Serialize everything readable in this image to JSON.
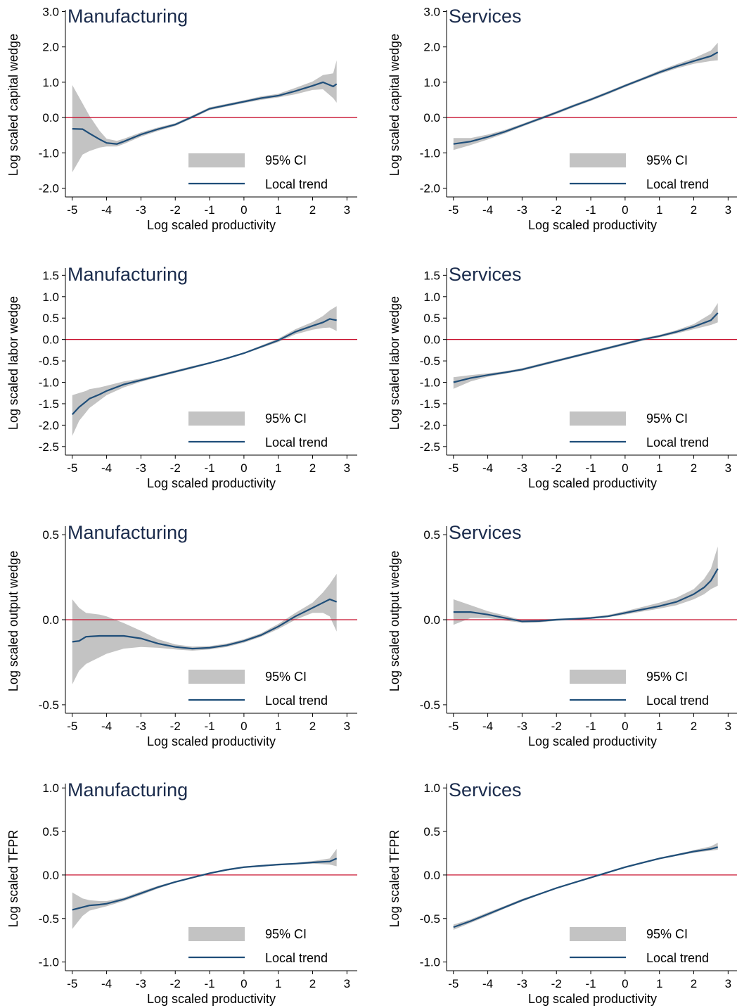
{
  "figure": {
    "xlabel": "Log scaled productivity",
    "legend": {
      "ci_label": "95% CI",
      "trend_label": "Local trend"
    },
    "colors": {
      "ci": "#c3c3c3",
      "trend": "#1f4e79",
      "reference": "#c8102e",
      "title": "#1a2b4c"
    }
  },
  "chart_data": [
    {
      "type": "line",
      "title": "Manufacturing",
      "ylabel": "Log scaled capital wedge",
      "xlabel": "Log scaled productivity",
      "xlim": [
        -5.2,
        3.3
      ],
      "ylim": [
        -2.25,
        3.05
      ],
      "xticks": [
        "-5",
        "-4",
        "-3",
        "-2",
        "-1",
        "0",
        "1",
        "2",
        "3"
      ],
      "yticks": [
        "3.0",
        "2.0",
        "1.0",
        "0.0",
        "-1.0",
        "-2.0"
      ],
      "ytick_values": [
        3,
        2,
        1,
        0,
        -1,
        -2
      ],
      "reference_y": 0,
      "legend_position": "bottom-right",
      "x": [
        -5,
        -4.7,
        -4.5,
        -4.2,
        -4,
        -3.7,
        -3.5,
        -3,
        -2.5,
        -2,
        -1.5,
        -1,
        -0.5,
        0,
        0.5,
        1,
        1.5,
        2,
        2.3,
        2.6,
        2.7
      ],
      "series": [
        {
          "name": "Local trend",
          "values": [
            -0.32,
            -0.33,
            -0.45,
            -0.62,
            -0.72,
            -0.75,
            -0.68,
            -0.48,
            -0.33,
            -0.2,
            0.02,
            0.25,
            0.35,
            0.45,
            0.55,
            0.62,
            0.75,
            0.9,
            1.0,
            0.88,
            0.95
          ]
        },
        {
          "name": "95% CI",
          "lower": [
            -1.55,
            -1.05,
            -0.95,
            -0.85,
            -0.82,
            -0.82,
            -0.75,
            -0.54,
            -0.38,
            -0.24,
            -0.02,
            0.21,
            0.31,
            0.41,
            0.5,
            0.57,
            0.66,
            0.78,
            0.8,
            0.55,
            0.42
          ],
          "upper": [
            0.92,
            0.4,
            0.05,
            -0.38,
            -0.6,
            -0.66,
            -0.6,
            -0.42,
            -0.28,
            -0.16,
            0.06,
            0.29,
            0.39,
            0.49,
            0.6,
            0.67,
            0.84,
            1.02,
            1.2,
            1.25,
            1.62
          ]
        }
      ]
    },
    {
      "type": "line",
      "title": "Services",
      "ylabel": "Log scaled capital wedge",
      "xlabel": "Log scaled productivity",
      "xlim": [
        -5.2,
        3.3
      ],
      "ylim": [
        -2.25,
        3.05
      ],
      "xticks": [
        "-5",
        "-4",
        "-3",
        "-2",
        "-1",
        "0",
        "1",
        "2",
        "3"
      ],
      "yticks": [
        "3.0",
        "2.0",
        "1.0",
        "0.0",
        "-1.0",
        "-2.0"
      ],
      "ytick_values": [
        3,
        2,
        1,
        0,
        -1,
        -2
      ],
      "reference_y": 0,
      "legend_position": "bottom-right",
      "x": [
        -5,
        -4.5,
        -4,
        -3.5,
        -3,
        -2.5,
        -2,
        -1.5,
        -1,
        -0.5,
        0,
        0.5,
        1,
        1.5,
        2,
        2.5,
        2.7
      ],
      "series": [
        {
          "name": "Local trend",
          "values": [
            -0.75,
            -0.68,
            -0.55,
            -0.4,
            -0.22,
            -0.04,
            0.14,
            0.33,
            0.51,
            0.7,
            0.9,
            1.09,
            1.28,
            1.45,
            1.6,
            1.74,
            1.85
          ]
        },
        {
          "name": "95% CI",
          "lower": [
            -0.92,
            -0.78,
            -0.62,
            -0.45,
            -0.26,
            -0.08,
            0.1,
            0.29,
            0.47,
            0.66,
            0.86,
            1.05,
            1.23,
            1.39,
            1.52,
            1.6,
            1.62
          ],
          "upper": [
            -0.58,
            -0.58,
            -0.48,
            -0.35,
            -0.18,
            0,
            0.18,
            0.37,
            0.55,
            0.74,
            0.94,
            1.13,
            1.33,
            1.51,
            1.68,
            1.9,
            2.12
          ]
        }
      ]
    },
    {
      "type": "line",
      "title": "Manufacturing",
      "ylabel": "Log scaled labor wedge",
      "xlabel": "Log scaled productivity",
      "xlim": [
        -5.2,
        3.3
      ],
      "ylim": [
        -2.7,
        1.67
      ],
      "xticks": [
        "-5",
        "-4",
        "-3",
        "-2",
        "-1",
        "0",
        "1",
        "2",
        "3"
      ],
      "yticks": [
        "1.5",
        "1.0",
        "0.5",
        "0.0",
        "-0.5",
        "-1.0",
        "-1.5",
        "-2.0",
        "-2.5"
      ],
      "ytick_values": [
        1.5,
        1,
        0.5,
        0,
        -0.5,
        -1,
        -1.5,
        -2,
        -2.5
      ],
      "reference_y": 0,
      "legend_position": "bottom-right",
      "x": [
        -5,
        -4.8,
        -4.6,
        -4.5,
        -4.2,
        -4,
        -3.5,
        -3,
        -2.5,
        -2,
        -1.5,
        -1,
        -0.5,
        0,
        0.5,
        1,
        1.5,
        2,
        2.3,
        2.5,
        2.7
      ],
      "series": [
        {
          "name": "Local trend",
          "values": [
            -1.75,
            -1.58,
            -1.45,
            -1.38,
            -1.28,
            -1.2,
            -1.05,
            -0.95,
            -0.85,
            -0.75,
            -0.65,
            -0.55,
            -0.44,
            -0.32,
            -0.17,
            -0.02,
            0.18,
            0.32,
            0.4,
            0.48,
            0.45
          ]
        },
        {
          "name": "95% CI",
          "lower": [
            -2.25,
            -1.9,
            -1.7,
            -1.6,
            -1.42,
            -1.3,
            -1.12,
            -0.99,
            -0.88,
            -0.78,
            -0.68,
            -0.57,
            -0.46,
            -0.34,
            -0.2,
            -0.06,
            0.12,
            0.23,
            0.27,
            0.28,
            0.2
          ],
          "upper": [
            -1.3,
            -1.25,
            -1.2,
            -1.16,
            -1.12,
            -1.08,
            -0.98,
            -0.91,
            -0.82,
            -0.72,
            -0.62,
            -0.53,
            -0.42,
            -0.3,
            -0.14,
            0.02,
            0.24,
            0.41,
            0.55,
            0.68,
            0.78
          ]
        }
      ]
    },
    {
      "type": "line",
      "title": "Services",
      "ylabel": "Log scaled labor wedge",
      "xlabel": "Log scaled productivity",
      "xlim": [
        -5.2,
        3.3
      ],
      "ylim": [
        -2.7,
        1.67
      ],
      "xticks": [
        "-5",
        "-4",
        "-3",
        "-2",
        "-1",
        "0",
        "1",
        "2",
        "3"
      ],
      "yticks": [
        "1.5",
        "1.0",
        "0.5",
        "0.0",
        "-0.5",
        "-1.0",
        "-1.5",
        "-2.0",
        "-2.5"
      ],
      "ytick_values": [
        1.5,
        1,
        0.5,
        0,
        -0.5,
        -1,
        -1.5,
        -2,
        -2.5
      ],
      "reference_y": 0,
      "legend_position": "bottom-right",
      "x": [
        -5,
        -4.5,
        -4,
        -3.5,
        -3,
        -2.5,
        -2,
        -1.5,
        -1,
        -0.5,
        0,
        0.5,
        1,
        1.5,
        2,
        2.5,
        2.7
      ],
      "series": [
        {
          "name": "Local trend",
          "values": [
            -1.0,
            -0.9,
            -0.83,
            -0.77,
            -0.7,
            -0.6,
            -0.5,
            -0.4,
            -0.3,
            -0.2,
            -0.1,
            0,
            0.08,
            0.18,
            0.3,
            0.45,
            0.62
          ]
        },
        {
          "name": "95% CI",
          "lower": [
            -1.15,
            -0.98,
            -0.87,
            -0.8,
            -0.73,
            -0.63,
            -0.53,
            -0.43,
            -0.33,
            -0.23,
            -0.13,
            -0.03,
            0.05,
            0.14,
            0.24,
            0.34,
            0.4
          ],
          "upper": [
            -0.88,
            -0.83,
            -0.79,
            -0.74,
            -0.67,
            -0.57,
            -0.47,
            -0.37,
            -0.27,
            -0.17,
            -0.07,
            0.03,
            0.11,
            0.22,
            0.36,
            0.6,
            0.85
          ]
        }
      ]
    },
    {
      "type": "line",
      "title": "Manufacturing",
      "ylabel": "Log scaled output wedge",
      "xlabel": "Log scaled productivity",
      "xlim": [
        -5.2,
        3.3
      ],
      "ylim": [
        -0.55,
        0.55
      ],
      "xticks": [
        "-5",
        "-4",
        "-3",
        "-2",
        "-1",
        "0",
        "1",
        "2",
        "3"
      ],
      "yticks": [
        "0.5",
        "0.0",
        "-0.5"
      ],
      "ytick_values": [
        0.5,
        0,
        -0.5
      ],
      "reference_y": 0,
      "legend_position": "bottom-right",
      "x": [
        -5,
        -4.8,
        -4.6,
        -4.2,
        -4,
        -3.5,
        -3,
        -2.5,
        -2,
        -1.5,
        -1,
        -0.5,
        0,
        0.5,
        1,
        1.5,
        2,
        2.3,
        2.5,
        2.7
      ],
      "series": [
        {
          "name": "Local trend",
          "values": [
            -0.13,
            -0.125,
            -0.1,
            -0.095,
            -0.095,
            -0.095,
            -0.11,
            -0.14,
            -0.16,
            -0.17,
            -0.165,
            -0.15,
            -0.125,
            -0.09,
            -0.04,
            0.02,
            0.07,
            0.1,
            0.12,
            0.105
          ]
        },
        {
          "name": "95% CI",
          "lower": [
            -0.38,
            -0.3,
            -0.26,
            -0.22,
            -0.2,
            -0.17,
            -0.16,
            -0.165,
            -0.175,
            -0.182,
            -0.175,
            -0.16,
            -0.135,
            -0.1,
            -0.055,
            0,
            0.04,
            0.04,
            0.02,
            -0.07
          ],
          "upper": [
            0.12,
            0.07,
            0.04,
            0.03,
            0.02,
            -0.02,
            -0.065,
            -0.115,
            -0.145,
            -0.158,
            -0.155,
            -0.14,
            -0.115,
            -0.08,
            -0.025,
            0.04,
            0.1,
            0.16,
            0.21,
            0.27
          ]
        }
      ]
    },
    {
      "type": "line",
      "title": "Services",
      "ylabel": "Log scaled output wedge",
      "xlabel": "Log scaled productivity",
      "xlim": [
        -5.2,
        3.3
      ],
      "ylim": [
        -0.55,
        0.55
      ],
      "xticks": [
        "-5",
        "-4",
        "-3",
        "-2",
        "-1",
        "0",
        "1",
        "2",
        "3"
      ],
      "yticks": [
        "0.5",
        "0.0",
        "-0.5"
      ],
      "ytick_values": [
        0.5,
        0,
        -0.5
      ],
      "reference_y": 0,
      "legend_position": "bottom-right",
      "x": [
        -5,
        -4.5,
        -4,
        -3.5,
        -3,
        -2.5,
        -2,
        -1.5,
        -1,
        -0.5,
        0,
        0.5,
        1,
        1.5,
        2,
        2.3,
        2.5,
        2.7
      ],
      "series": [
        {
          "name": "Local trend",
          "values": [
            0.045,
            0.045,
            0.03,
            0.01,
            -0.01,
            -0.008,
            0,
            0.005,
            0.01,
            0.02,
            0.04,
            0.06,
            0.08,
            0.105,
            0.15,
            0.19,
            0.23,
            0.3
          ]
        },
        {
          "name": "95% CI",
          "lower": [
            -0.03,
            0.01,
            0.01,
            -0.005,
            -0.018,
            -0.016,
            -0.006,
            0,
            0.005,
            0.015,
            0.03,
            0.048,
            0.065,
            0.085,
            0.12,
            0.15,
            0.18,
            0.2
          ],
          "upper": [
            0.12,
            0.085,
            0.05,
            0.025,
            -0.002,
            0,
            0.006,
            0.01,
            0.017,
            0.028,
            0.05,
            0.075,
            0.1,
            0.13,
            0.18,
            0.24,
            0.3,
            0.43
          ]
        }
      ]
    },
    {
      "type": "line",
      "title": "Manufacturing",
      "ylabel": "Log scaled TFPR",
      "xlabel": "Log scaled productivity",
      "xlim": [
        -5.2,
        3.3
      ],
      "ylim": [
        -1.1,
        1.05
      ],
      "xticks": [
        "-5",
        "-4",
        "-3",
        "-2",
        "-1",
        "0",
        "1",
        "2",
        "3"
      ],
      "yticks": [
        "1.0",
        "0.5",
        "0.0",
        "-0.5",
        "-1.0"
      ],
      "ytick_values": [
        1,
        0.5,
        0,
        -0.5,
        -1
      ],
      "reference_y": 0,
      "legend_position": "bottom-right",
      "x": [
        -5,
        -4.7,
        -4.5,
        -4.2,
        -4,
        -3.5,
        -3,
        -2.5,
        -2,
        -1.5,
        -1,
        -0.5,
        0,
        0.5,
        1,
        1.5,
        2,
        2.5,
        2.7
      ],
      "series": [
        {
          "name": "Local trend",
          "values": [
            -0.4,
            -0.37,
            -0.35,
            -0.34,
            -0.33,
            -0.28,
            -0.21,
            -0.14,
            -0.08,
            -0.03,
            0.02,
            0.06,
            0.09,
            0.105,
            0.12,
            0.13,
            0.145,
            0.155,
            0.19
          ]
        },
        {
          "name": "95% CI",
          "lower": [
            -0.62,
            -0.47,
            -0.41,
            -0.38,
            -0.36,
            -0.3,
            -0.23,
            -0.155,
            -0.09,
            -0.04,
            0.01,
            0.05,
            0.08,
            0.095,
            0.11,
            0.12,
            0.13,
            0.12,
            0.1
          ],
          "upper": [
            -0.2,
            -0.27,
            -0.29,
            -0.3,
            -0.3,
            -0.26,
            -0.19,
            -0.125,
            -0.07,
            -0.02,
            0.03,
            0.07,
            0.1,
            0.115,
            0.13,
            0.14,
            0.16,
            0.19,
            0.3
          ]
        }
      ]
    },
    {
      "type": "line",
      "title": "Services",
      "ylabel": "Log scaled TFPR",
      "xlabel": "Log scaled productivity",
      "xlim": [
        -5.2,
        3.3
      ],
      "ylim": [
        -1.1,
        1.05
      ],
      "xticks": [
        "-5",
        "-4",
        "-3",
        "-2",
        "-1",
        "0",
        "1",
        "2",
        "3"
      ],
      "yticks": [
        "1.0",
        "0.5",
        "0.0",
        "-0.5",
        "-1.0"
      ],
      "ytick_values": [
        1,
        0.5,
        0,
        -0.5,
        -1
      ],
      "reference_y": 0,
      "legend_position": "bottom-right",
      "x": [
        -5,
        -4.5,
        -4,
        -3.5,
        -3,
        -2.5,
        -2,
        -1.5,
        -1,
        -0.5,
        0,
        0.5,
        1,
        1.5,
        2,
        2.5,
        2.7
      ],
      "series": [
        {
          "name": "Local trend",
          "values": [
            -0.6,
            -0.53,
            -0.45,
            -0.37,
            -0.29,
            -0.22,
            -0.15,
            -0.09,
            -0.03,
            0.03,
            0.09,
            0.14,
            0.19,
            0.23,
            0.27,
            0.3,
            0.32
          ]
        },
        {
          "name": "95% CI",
          "lower": [
            -0.63,
            -0.55,
            -0.47,
            -0.385,
            -0.305,
            -0.23,
            -0.16,
            -0.1,
            -0.04,
            0.02,
            0.08,
            0.13,
            0.18,
            0.22,
            0.255,
            0.28,
            0.29
          ],
          "upper": [
            -0.57,
            -0.51,
            -0.43,
            -0.355,
            -0.275,
            -0.21,
            -0.14,
            -0.08,
            -0.02,
            0.04,
            0.1,
            0.15,
            0.2,
            0.24,
            0.285,
            0.33,
            0.37
          ]
        }
      ]
    }
  ]
}
